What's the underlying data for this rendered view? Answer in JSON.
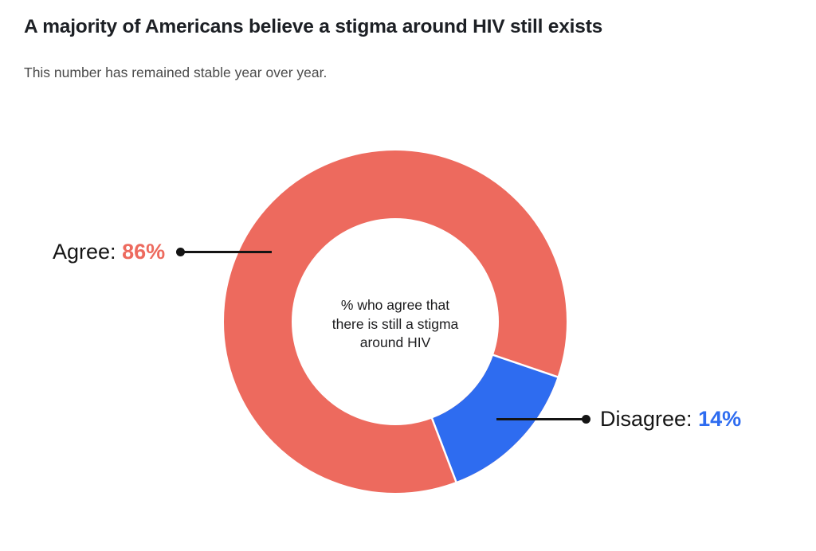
{
  "header": {
    "title": "A majority of Americans believe a stigma around HIV still exists",
    "subtitle": "This number has remained stable year over year."
  },
  "chart_data": {
    "type": "pie",
    "variant": "donut",
    "title": "A majority of Americans believe a stigma around HIV still exists",
    "subtitle": "This number has remained stable year over year.",
    "categories": [
      "Agree",
      "Disagree"
    ],
    "values": [
      86,
      14
    ],
    "unit": "%",
    "segments": [
      {
        "label": "Agree",
        "value": 86,
        "color": "#ED6A5E"
      },
      {
        "label": "Disagree",
        "value": 14,
        "color": "#2E6CF0"
      }
    ],
    "center_label": "% who agree that there is still a stigma around HIV",
    "center_label_lines": [
      "% who agree that",
      "there is still a stigma",
      "around HIV"
    ],
    "disagree_start_angle_deg_from_3oclock": 18.8,
    "legend_position": "callout-labels-with-leader-lines",
    "grid": false
  },
  "callouts": {
    "agree": {
      "prefix": "Agree:",
      "value_text": "86%"
    },
    "disagree": {
      "prefix": "Disagree:",
      "value_text": "14%"
    }
  },
  "colors": {
    "agree": "#ED6A5E",
    "disagree": "#2E6CF0",
    "title_text": "#1D2025",
    "subtitle_text": "#4B4B4B",
    "center_text": "#1C1C1E",
    "leader_line": "#141414",
    "separator": "#FFFFFF",
    "background": "#FFFFFF"
  }
}
